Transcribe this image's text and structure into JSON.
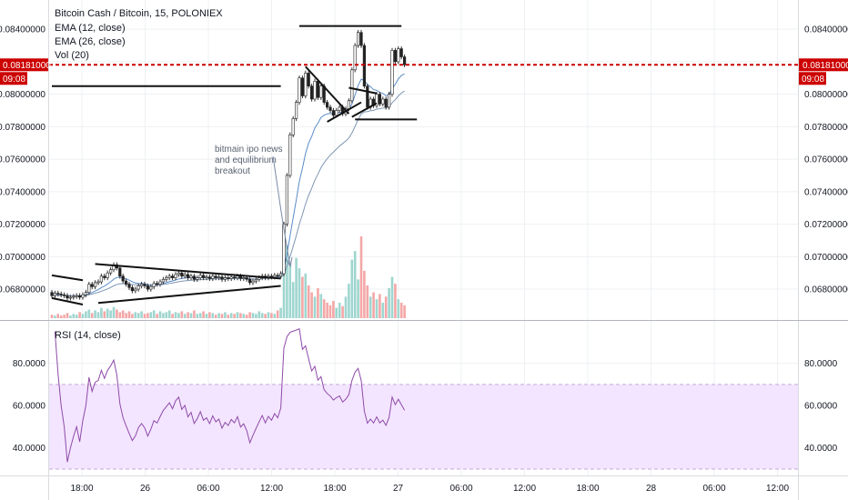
{
  "chart_data": [
    {
      "type": "candlestick",
      "title": "Bitcoin Cash / Bitcoin, 15, POLONIEX",
      "indicators": [
        "EMA (12, close)",
        "EMA (26, close)",
        "Vol (20)"
      ],
      "x_tick_labels": [
        "18:00",
        "26",
        "06:00",
        "12:00",
        "18:00",
        "27",
        "06:00",
        "12:00",
        "18:00",
        "28",
        "06:00",
        "12:00"
      ],
      "y_tick_labels": [
        "0.08400000",
        "0.08200000",
        "0.08000000",
        "0.07800000",
        "0.07600000",
        "0.07400000",
        "0.07200000",
        "0.07000000",
        "0.06800000"
      ],
      "ylim": [
        0.0661,
        0.0858
      ],
      "last_price": {
        "label": "0.08181000",
        "value": 0.08181,
        "time_label": "09:08"
      },
      "annotation": [
        "bitmain ipo news",
        "and equilibrium",
        "breakout"
      ],
      "trendlines": [
        {
          "from": [
            0,
            0.06885
          ],
          "to": [
            10,
            0.06855
          ]
        },
        {
          "from": [
            0,
            0.06745
          ],
          "to": [
            10,
            0.06705
          ]
        },
        {
          "from": [
            14,
            0.06955
          ],
          "to": [
            74,
            0.06865
          ]
        },
        {
          "from": [
            15,
            0.06715
          ],
          "to": [
            74,
            0.0682
          ]
        },
        {
          "from": [
            0,
            0.0805
          ],
          "to": [
            74,
            0.0805
          ]
        },
        {
          "from": [
            80,
            0.0842
          ],
          "to": [
            113,
            0.0842
          ]
        },
        {
          "from": [
            82,
            0.0817
          ],
          "to": [
            96,
            0.0788
          ]
        },
        {
          "from": [
            89,
            0.0783
          ],
          "to": [
            100,
            0.0795
          ]
        },
        {
          "from": [
            98,
            0.07845
          ],
          "to": [
            118,
            0.07845
          ]
        },
        {
          "from": [
            96,
            0.0804
          ],
          "to": [
            105,
            0.08005
          ]
        },
        {
          "from": [
            97,
            0.0786
          ],
          "to": [
            105,
            0.07945
          ]
        }
      ],
      "candles": [
        {
          "o": 0.0678,
          "c": 0.0676
        },
        {
          "o": 0.0676,
          "c": 0.06775
        },
        {
          "o": 0.06775,
          "c": 0.0677
        },
        {
          "o": 0.0677,
          "c": 0.06765
        },
        {
          "o": 0.06765,
          "c": 0.0676
        },
        {
          "o": 0.0676,
          "c": 0.06745
        },
        {
          "o": 0.06745,
          "c": 0.0675
        },
        {
          "o": 0.0675,
          "c": 0.06755
        },
        {
          "o": 0.06755,
          "c": 0.0676
        },
        {
          "o": 0.0676,
          "c": 0.0675
        },
        {
          "o": 0.0675,
          "c": 0.06765
        },
        {
          "o": 0.06765,
          "c": 0.0678
        },
        {
          "o": 0.0678,
          "c": 0.0683
        },
        {
          "o": 0.0683,
          "c": 0.06815
        },
        {
          "o": 0.06815,
          "c": 0.0684
        },
        {
          "o": 0.0684,
          "c": 0.06845
        },
        {
          "o": 0.06845,
          "c": 0.0688
        },
        {
          "o": 0.0688,
          "c": 0.0687
        },
        {
          "o": 0.0687,
          "c": 0.069
        },
        {
          "o": 0.069,
          "c": 0.0692
        },
        {
          "o": 0.0692,
          "c": 0.0695
        },
        {
          "o": 0.0695,
          "c": 0.0693
        },
        {
          "o": 0.0693,
          "c": 0.0688
        },
        {
          "o": 0.0688,
          "c": 0.0685
        },
        {
          "o": 0.0685,
          "c": 0.0683
        },
        {
          "o": 0.0683,
          "c": 0.0681
        },
        {
          "o": 0.0681,
          "c": 0.0679
        },
        {
          "o": 0.0679,
          "c": 0.068
        },
        {
          "o": 0.068,
          "c": 0.0682
        },
        {
          "o": 0.0682,
          "c": 0.0683
        },
        {
          "o": 0.0683,
          "c": 0.0682
        },
        {
          "o": 0.0682,
          "c": 0.068
        },
        {
          "o": 0.068,
          "c": 0.06815
        },
        {
          "o": 0.06815,
          "c": 0.06835
        },
        {
          "o": 0.06835,
          "c": 0.0683
        },
        {
          "o": 0.0683,
          "c": 0.06845
        },
        {
          "o": 0.06845,
          "c": 0.0686
        },
        {
          "o": 0.0686,
          "c": 0.0687
        },
        {
          "o": 0.0687,
          "c": 0.0688
        },
        {
          "o": 0.0688,
          "c": 0.0687
        },
        {
          "o": 0.0687,
          "c": 0.0689
        },
        {
          "o": 0.0689,
          "c": 0.069
        },
        {
          "o": 0.069,
          "c": 0.0688
        },
        {
          "o": 0.0688,
          "c": 0.0689
        },
        {
          "o": 0.0689,
          "c": 0.0687
        },
        {
          "o": 0.0687,
          "c": 0.0688
        },
        {
          "o": 0.0688,
          "c": 0.0686
        },
        {
          "o": 0.0686,
          "c": 0.0687
        },
        {
          "o": 0.0687,
          "c": 0.06885
        },
        {
          "o": 0.06885,
          "c": 0.0687
        },
        {
          "o": 0.0687,
          "c": 0.06875
        },
        {
          "o": 0.06875,
          "c": 0.06865
        },
        {
          "o": 0.06865,
          "c": 0.0688
        },
        {
          "o": 0.0688,
          "c": 0.0687
        },
        {
          "o": 0.0687,
          "c": 0.06875
        },
        {
          "o": 0.06875,
          "c": 0.0686
        },
        {
          "o": 0.0686,
          "c": 0.0687
        },
        {
          "o": 0.0687,
          "c": 0.06865
        },
        {
          "o": 0.06865,
          "c": 0.06875
        },
        {
          "o": 0.06875,
          "c": 0.0687
        },
        {
          "o": 0.0687,
          "c": 0.0688
        },
        {
          "o": 0.0688,
          "c": 0.06865
        },
        {
          "o": 0.06865,
          "c": 0.0687
        },
        {
          "o": 0.0687,
          "c": 0.0686
        },
        {
          "o": 0.0686,
          "c": 0.0684
        },
        {
          "o": 0.0684,
          "c": 0.0685
        },
        {
          "o": 0.0685,
          "c": 0.0686
        },
        {
          "o": 0.0686,
          "c": 0.0687
        },
        {
          "o": 0.0687,
          "c": 0.0688
        },
        {
          "o": 0.0688,
          "c": 0.0687
        },
        {
          "o": 0.0687,
          "c": 0.0688
        },
        {
          "o": 0.0688,
          "c": 0.06875
        },
        {
          "o": 0.06875,
          "c": 0.06885
        },
        {
          "o": 0.06885,
          "c": 0.0688
        },
        {
          "o": 0.0688,
          "c": 0.06895
        },
        {
          "o": 0.06895,
          "c": 0.072
        },
        {
          "o": 0.072,
          "c": 0.075
        },
        {
          "o": 0.075,
          "c": 0.0775
        },
        {
          "o": 0.0775,
          "c": 0.0785
        },
        {
          "o": 0.0785,
          "c": 0.0795
        },
        {
          "o": 0.0795,
          "c": 0.081
        },
        {
          "o": 0.081,
          "c": 0.0799
        },
        {
          "o": 0.0799,
          "c": 0.0813
        },
        {
          "o": 0.0813,
          "c": 0.0805
        },
        {
          "o": 0.0805,
          "c": 0.0797
        },
        {
          "o": 0.0797,
          "c": 0.0808
        },
        {
          "o": 0.0808,
          "c": 0.0798
        },
        {
          "o": 0.0798,
          "c": 0.0805
        },
        {
          "o": 0.0805,
          "c": 0.0795
        },
        {
          "o": 0.0795,
          "c": 0.0792
        },
        {
          "o": 0.0792,
          "c": 0.079
        },
        {
          "o": 0.079,
          "c": 0.0787
        },
        {
          "o": 0.0787,
          "c": 0.079
        },
        {
          "o": 0.079,
          "c": 0.0792
        },
        {
          "o": 0.0792,
          "c": 0.0788
        },
        {
          "o": 0.0788,
          "c": 0.0791
        },
        {
          "o": 0.0791,
          "c": 0.0796
        },
        {
          "o": 0.0796,
          "c": 0.0815
        },
        {
          "o": 0.0815,
          "c": 0.083
        },
        {
          "o": 0.083,
          "c": 0.0838
        },
        {
          "o": 0.0838,
          "c": 0.083
        },
        {
          "o": 0.083,
          "c": 0.0805
        },
        {
          "o": 0.0805,
          "c": 0.0792
        },
        {
          "o": 0.0792,
          "c": 0.0797
        },
        {
          "o": 0.0797,
          "c": 0.0793
        },
        {
          "o": 0.0793,
          "c": 0.08
        },
        {
          "o": 0.08,
          "c": 0.0794
        },
        {
          "o": 0.0794,
          "c": 0.0797
        },
        {
          "o": 0.0797,
          "c": 0.0792
        },
        {
          "o": 0.0792,
          "c": 0.08
        },
        {
          "o": 0.08,
          "c": 0.0827
        },
        {
          "o": 0.0827,
          "c": 0.082
        },
        {
          "o": 0.082,
          "c": 0.0828
        },
        {
          "o": 0.0828,
          "c": 0.0823
        },
        {
          "o": 0.0823,
          "c": 0.08181
        }
      ],
      "volume": [
        4,
        3,
        5,
        3,
        4,
        6,
        3,
        5,
        4,
        7,
        5,
        8,
        10,
        6,
        9,
        7,
        12,
        8,
        11,
        9,
        13,
        10,
        7,
        9,
        6,
        8,
        5,
        7,
        6,
        8,
        5,
        6,
        7,
        9,
        5,
        8,
        6,
        7,
        9,
        5,
        7,
        6,
        8,
        5,
        7,
        6,
        9,
        5,
        6,
        8,
        5,
        7,
        6,
        4,
        6,
        5,
        7,
        4,
        6,
        5,
        7,
        6,
        5,
        4,
        7,
        6,
        5,
        8,
        6,
        5,
        7,
        6,
        5,
        9,
        12,
        55,
        85,
        65,
        42,
        70,
        58,
        48,
        52,
        38,
        30,
        25,
        35,
        28,
        22,
        18,
        15,
        20,
        12,
        18,
        14,
        25,
        40,
        68,
        78,
        45,
        95,
        55,
        38,
        25,
        30,
        22,
        28,
        18,
        25,
        35,
        48,
        40,
        22,
        18,
        15
      ],
      "ema12_start": 0.0676,
      "ema26_start": 0.0676
    },
    {
      "type": "line",
      "title": "RSI (14, close)",
      "y_tick_labels": [
        "80.0000",
        "60.0000",
        "40.0000"
      ],
      "ylim": [
        27,
        100
      ],
      "band": [
        30,
        70
      ]
    }
  ]
}
